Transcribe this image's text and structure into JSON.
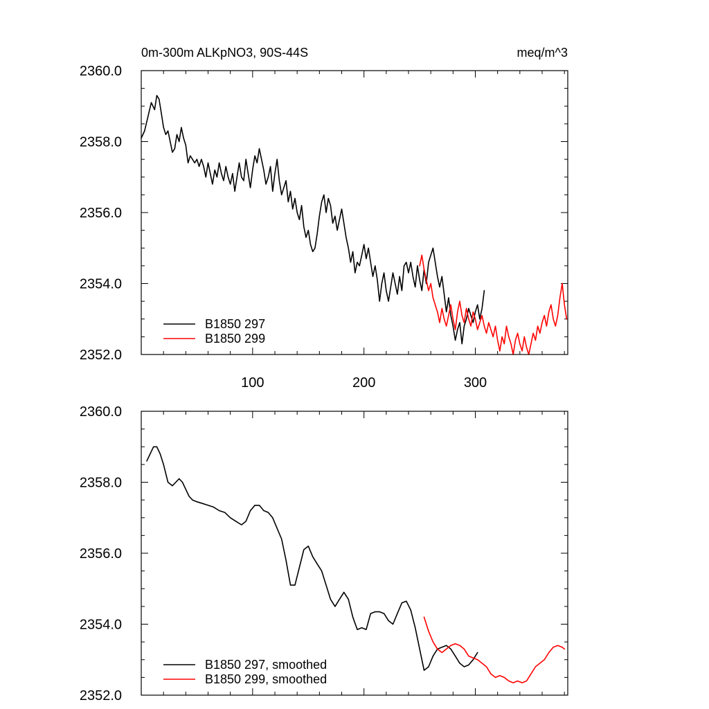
{
  "chart_data": [
    {
      "type": "line",
      "title_left": "0m-300m ALKpNO3, 90S-44S",
      "title_right": "meq/m^3",
      "xlim": [
        0,
        383
      ],
      "ylim": [
        2352,
        2360
      ],
      "x_ticks": [
        100,
        200,
        300
      ],
      "x_tick_labels": [
        "100",
        "200",
        "300"
      ],
      "y_ticks": [
        2352,
        2354,
        2356,
        2358,
        2360
      ],
      "y_tick_labels": [
        "2352.0",
        "2354.0",
        "2356.0",
        "2358.0",
        "2360.0"
      ],
      "legend_position": "bottom-left",
      "series": [
        {
          "name": "B1850 297",
          "color": "#000000",
          "x": [
            0,
            3,
            6,
            9,
            12,
            14,
            16,
            18,
            20,
            22,
            24,
            26,
            28,
            30,
            32,
            34,
            36,
            38,
            40,
            42,
            44,
            46,
            48,
            50,
            52,
            54,
            56,
            58,
            60,
            62,
            64,
            66,
            68,
            70,
            72,
            74,
            76,
            78,
            80,
            82,
            84,
            86,
            88,
            90,
            92,
            94,
            96,
            98,
            100,
            102,
            104,
            106,
            108,
            110,
            112,
            114,
            116,
            118,
            120,
            122,
            124,
            126,
            128,
            130,
            132,
            134,
            136,
            138,
            140,
            142,
            144,
            146,
            148,
            150,
            152,
            154,
            156,
            158,
            160,
            162,
            164,
            166,
            168,
            170,
            172,
            174,
            176,
            178,
            180,
            182,
            184,
            186,
            188,
            190,
            192,
            194,
            196,
            198,
            200,
            202,
            204,
            206,
            208,
            210,
            212,
            214,
            216,
            218,
            220,
            222,
            224,
            226,
            228,
            230,
            232,
            234,
            236,
            238,
            240,
            242,
            244,
            246,
            248,
            250,
            252,
            254,
            256,
            258,
            260,
            262,
            264,
            266,
            268,
            270,
            272,
            274,
            276,
            278,
            280,
            282,
            284,
            286,
            288,
            290,
            292,
            294,
            296,
            298,
            300,
            302,
            304,
            306,
            308
          ],
          "y": [
            2358.1,
            2358.3,
            2358.7,
            2359.1,
            2358.9,
            2359.3,
            2359.2,
            2358.8,
            2358.4,
            2358.2,
            2358.3,
            2358.0,
            2357.7,
            2357.8,
            2358.2,
            2358.0,
            2358.4,
            2358.1,
            2357.9,
            2357.4,
            2357.6,
            2357.5,
            2357.4,
            2357.5,
            2357.3,
            2357.5,
            2357.3,
            2357.0,
            2357.4,
            2357.1,
            2356.8,
            2357.2,
            2357.0,
            2357.4,
            2357.1,
            2356.9,
            2357.3,
            2357.0,
            2356.8,
            2357.1,
            2356.6,
            2357.0,
            2357.4,
            2357.0,
            2356.9,
            2357.5,
            2357.1,
            2356.7,
            2357.2,
            2357.6,
            2357.4,
            2357.8,
            2357.5,
            2357.2,
            2356.8,
            2357.0,
            2357.3,
            2356.6,
            2357.1,
            2357.5,
            2356.9,
            2356.5,
            2356.7,
            2356.9,
            2356.3,
            2356.6,
            2356.1,
            2356.4,
            2356.0,
            2355.8,
            2356.2,
            2355.6,
            2355.3,
            2355.5,
            2355.1,
            2354.9,
            2355.0,
            2355.4,
            2355.9,
            2356.3,
            2356.5,
            2356.0,
            2356.4,
            2356.2,
            2355.7,
            2355.9,
            2355.5,
            2355.8,
            2356.1,
            2355.7,
            2355.3,
            2355.0,
            2354.6,
            2354.9,
            2354.3,
            2354.6,
            2354.5,
            2354.8,
            2355.1,
            2354.7,
            2355.0,
            2354.6,
            2354.2,
            2354.5,
            2354.1,
            2353.5,
            2354.0,
            2354.3,
            2353.8,
            2353.5,
            2353.9,
            2354.3,
            2354.0,
            2353.7,
            2354.2,
            2353.8,
            2354.5,
            2354.6,
            2354.3,
            2354.6,
            2354.2,
            2353.9,
            2354.5,
            2354.1,
            2353.8,
            2354.4,
            2354.0,
            2354.6,
            2354.8,
            2355.0,
            2354.6,
            2354.2,
            2353.9,
            2354.2,
            2353.7,
            2353.2,
            2353.6,
            2353.1,
            2352.8,
            2352.4,
            2352.7,
            2352.9,
            2352.3,
            2352.8,
            2353.0,
            2353.3,
            2353.1,
            2352.9,
            2353.2,
            2353.4,
            2353.0,
            2353.3,
            2353.8
          ]
        },
        {
          "name": "B1850 299",
          "color": "#ff0000",
          "x": [
            250,
            252,
            254,
            256,
            258,
            260,
            262,
            264,
            266,
            268,
            270,
            272,
            274,
            276,
            278,
            280,
            282,
            284,
            286,
            288,
            290,
            292,
            294,
            296,
            298,
            300,
            302,
            304,
            306,
            308,
            310,
            312,
            314,
            316,
            318,
            320,
            322,
            324,
            326,
            328,
            330,
            332,
            334,
            336,
            338,
            340,
            342,
            344,
            346,
            348,
            350,
            352,
            354,
            356,
            358,
            360,
            362,
            364,
            366,
            368,
            370,
            372,
            374,
            376,
            378,
            380,
            382
          ],
          "y": [
            2354.5,
            2354.8,
            2354.4,
            2354.1,
            2353.8,
            2354.0,
            2353.6,
            2353.4,
            2353.2,
            2352.9,
            2353.3,
            2353.0,
            2352.8,
            2353.1,
            2353.4,
            2353.0,
            2352.7,
            2353.2,
            2353.5,
            2353.1,
            2352.9,
            2353.3,
            2353.0,
            2352.8,
            2353.2,
            2353.0,
            2352.7,
            2352.9,
            2353.1,
            2352.8,
            2352.6,
            2352.9,
            2352.7,
            2352.5,
            2352.8,
            2352.4,
            2352.1,
            2352.5,
            2352.3,
            2352.8,
            2352.5,
            2352.3,
            2352.0,
            2352.4,
            2352.6,
            2352.3,
            2352.1,
            2352.5,
            2352.2,
            2352.0,
            2352.3,
            2352.6,
            2352.4,
            2352.8,
            2352.6,
            2352.9,
            2353.1,
            2352.8,
            2353.2,
            2353.4,
            2353.0,
            2352.8,
            2353.1,
            2353.6,
            2354.0,
            2353.4,
            2353.0
          ]
        }
      ]
    },
    {
      "type": "line",
      "xlim": [
        0,
        383
      ],
      "ylim": [
        2352,
        2360
      ],
      "x_ticks": [
        100,
        200,
        300
      ],
      "y_ticks": [
        2352,
        2354,
        2356,
        2358,
        2360
      ],
      "y_tick_labels": [
        "2352.0",
        "2354.0",
        "2356.0",
        "2358.0",
        "2360.0"
      ],
      "legend_position": "bottom-left",
      "series": [
        {
          "name": "B1850 297, smoothed",
          "color": "#000000",
          "x": [
            5,
            8,
            11,
            14,
            17,
            20,
            24,
            28,
            31,
            34,
            37,
            40,
            43,
            46,
            50,
            55,
            60,
            65,
            70,
            75,
            80,
            85,
            90,
            94,
            98,
            102,
            106,
            110,
            114,
            118,
            122,
            126,
            130,
            134,
            138,
            142,
            146,
            150,
            154,
            158,
            162,
            166,
            170,
            174,
            178,
            182,
            186,
            190,
            194,
            198,
            202,
            206,
            210,
            214,
            218,
            222,
            226,
            230,
            234,
            238,
            242,
            246,
            250,
            254,
            258,
            262,
            266,
            270,
            274,
            278,
            282,
            286,
            290,
            294,
            298,
            302
          ],
          "y": [
            2358.6,
            2358.8,
            2359.0,
            2359.0,
            2358.8,
            2358.5,
            2358.0,
            2357.9,
            2358.0,
            2358.1,
            2358.0,
            2357.8,
            2357.6,
            2357.5,
            2357.45,
            2357.4,
            2357.35,
            2357.3,
            2357.2,
            2357.15,
            2357.0,
            2356.9,
            2356.8,
            2356.9,
            2357.2,
            2357.35,
            2357.35,
            2357.2,
            2357.15,
            2357.0,
            2356.7,
            2356.4,
            2355.8,
            2355.1,
            2355.1,
            2355.6,
            2356.1,
            2356.2,
            2355.9,
            2355.7,
            2355.5,
            2355.1,
            2354.7,
            2354.5,
            2354.7,
            2354.9,
            2354.7,
            2354.2,
            2353.85,
            2353.9,
            2353.85,
            2354.3,
            2354.35,
            2354.35,
            2354.3,
            2354.1,
            2354.0,
            2354.3,
            2354.6,
            2354.65,
            2354.4,
            2353.9,
            2353.3,
            2352.7,
            2352.8,
            2353.1,
            2353.3,
            2353.35,
            2353.4,
            2353.3,
            2353.1,
            2352.9,
            2352.8,
            2352.85,
            2353.0,
            2353.2
          ]
        },
        {
          "name": "B1850 299, smoothed",
          "color": "#ff0000",
          "x": [
            254,
            258,
            262,
            266,
            270,
            274,
            278,
            282,
            286,
            290,
            294,
            298,
            302,
            306,
            310,
            314,
            318,
            322,
            326,
            330,
            334,
            338,
            342,
            346,
            350,
            354,
            358,
            362,
            366,
            370,
            374,
            378,
            380
          ],
          "y": [
            2354.2,
            2353.8,
            2353.5,
            2353.3,
            2353.2,
            2353.3,
            2353.4,
            2353.45,
            2353.4,
            2353.3,
            2353.1,
            2353.05,
            2353.0,
            2352.9,
            2352.8,
            2352.6,
            2352.5,
            2352.55,
            2352.5,
            2352.4,
            2352.35,
            2352.4,
            2352.35,
            2352.4,
            2352.6,
            2352.8,
            2352.9,
            2353.0,
            2353.2,
            2353.35,
            2353.4,
            2353.35,
            2353.3
          ]
        }
      ]
    }
  ]
}
